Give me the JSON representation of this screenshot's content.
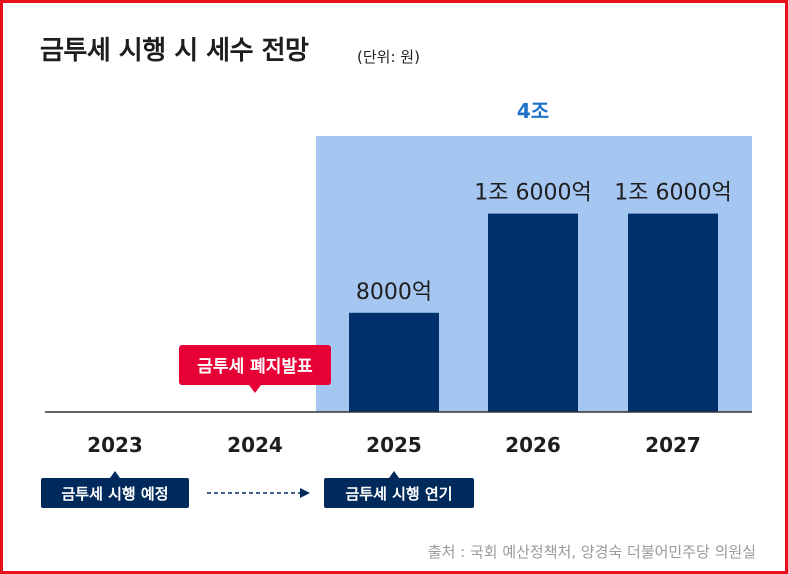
{
  "header": {
    "title": "금투세 시행 시 세수 전망",
    "unit": "(단위: 원)"
  },
  "source": "출처 : 국회 예산정책처, 양경숙 더불어민주당 의원실",
  "colors": {
    "border": "#e8101c",
    "highlight_region": "#a5c6f1",
    "bar": "#00306b",
    "total_label": "#1f73c9",
    "callout": "#e60036",
    "badge": "#002a5c",
    "axis": "#333333",
    "source_text": "#9a9a9a"
  },
  "chart_data": {
    "type": "bar",
    "title": "금투세 시행 시 세수 전망",
    "unit": "(단위: 원)",
    "categories": [
      "2023",
      "2024",
      "2025",
      "2026",
      "2027"
    ],
    "values": [
      null,
      null,
      8000,
      16000,
      16000
    ],
    "value_unit": "억",
    "data_labels": [
      "",
      "",
      "8000억",
      "1조 6000억",
      "1조 6000억"
    ],
    "ylim": [
      0,
      20000
    ],
    "grid": false,
    "legend": "none",
    "highlight_region": {
      "categories": [
        "2025",
        "2026",
        "2027"
      ],
      "label": "4조"
    },
    "annotations": {
      "event_callout": {
        "category": "2024",
        "text": "금투세 폐지발표"
      },
      "planned_badge": {
        "category": "2023",
        "text": "금투세 시행 예정"
      },
      "postponed_badge": {
        "category": "2025",
        "text": "금투세 시행 연기"
      }
    }
  }
}
